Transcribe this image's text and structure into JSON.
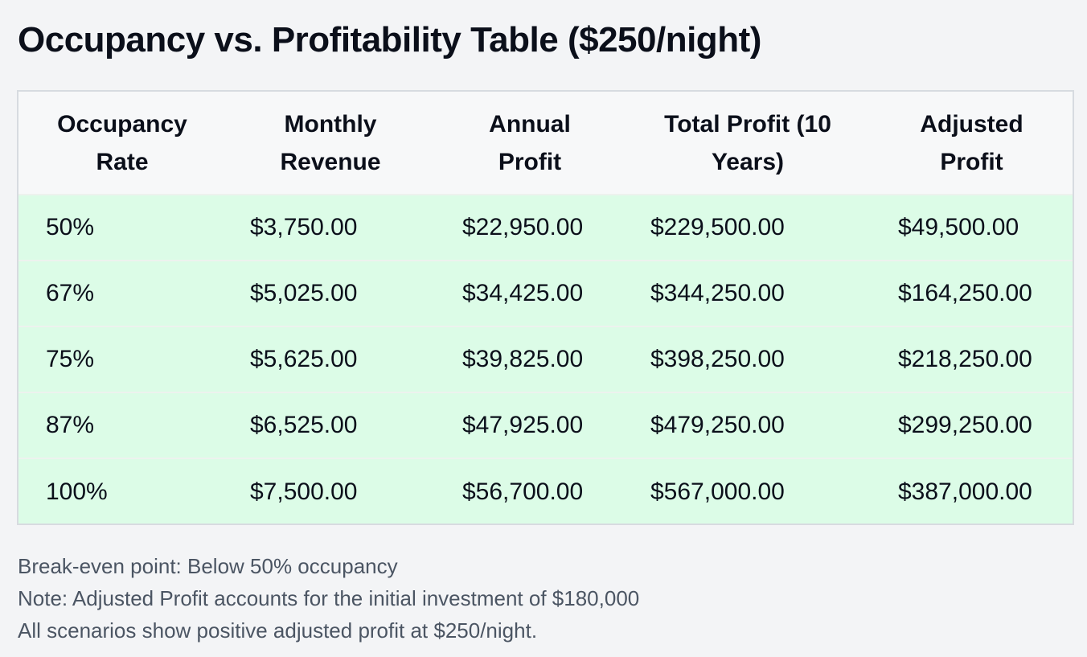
{
  "title": "Occupancy vs. Profitability Table ($250/night)",
  "table": {
    "headers": [
      [
        "Occupancy",
        "Rate"
      ],
      [
        "Monthly",
        "Revenue"
      ],
      [
        "Annual",
        "Profit"
      ],
      [
        "Total Profit (10",
        "Years)"
      ],
      [
        "Adjusted",
        "Profit"
      ]
    ],
    "rows": [
      [
        "50%",
        "$3,750.00",
        "$22,950.00",
        "$229,500.00",
        "$49,500.00"
      ],
      [
        "67%",
        "$5,025.00",
        "$34,425.00",
        "$344,250.00",
        "$164,250.00"
      ],
      [
        "75%",
        "$5,625.00",
        "$39,825.00",
        "$398,250.00",
        "$218,250.00"
      ],
      [
        "87%",
        "$6,525.00",
        "$47,925.00",
        "$479,250.00",
        "$299,250.00"
      ],
      [
        "100%",
        "$7,500.00",
        "$56,700.00",
        "$567,000.00",
        "$387,000.00"
      ]
    ],
    "row_color": "#dcfce7",
    "header_color": "#f7f8f9"
  },
  "notes": [
    "Break-even point: Below 50% occupancy",
    "Note: Adjusted Profit accounts for the initial investment of $180,000",
    "All scenarios show positive adjusted profit at $250/night."
  ]
}
